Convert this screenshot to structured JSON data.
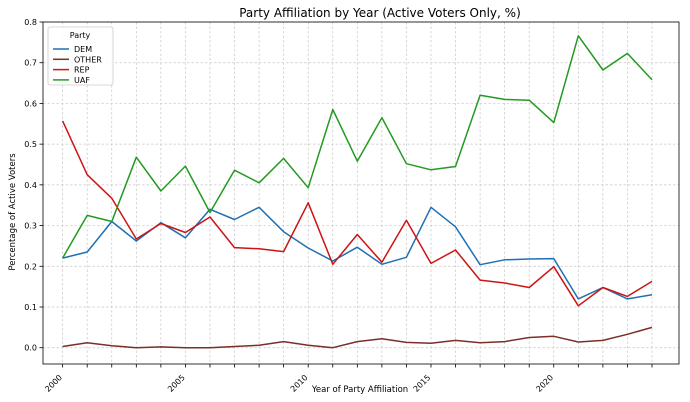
{
  "chart_data": {
    "type": "line",
    "title": "Party Affiliation by Year (Active Voters Only, %)",
    "xlabel": "Year of Party Affiliation",
    "ylabel": "Percentage of Active Voters",
    "xlim": [
      1999.2,
      2025.1
    ],
    "ylim": [
      -0.04,
      0.8
    ],
    "x_ticks": [
      2000,
      2005,
      2010,
      2015,
      2020
    ],
    "y_ticks": [
      0.0,
      0.1,
      0.2,
      0.3,
      0.4,
      0.5,
      0.6,
      0.7,
      0.8
    ],
    "grid": true,
    "legend": {
      "title": "Party",
      "placement": "top-left"
    },
    "x": [
      2000,
      2001,
      2002,
      2003,
      2004,
      2005,
      2006,
      2007,
      2008,
      2009,
      2010,
      2011,
      2012,
      2013,
      2014,
      2015,
      2016,
      2017,
      2018,
      2019,
      2020,
      2021,
      2022,
      2023,
      2024
    ],
    "series": [
      {
        "name": "DEM",
        "color": "#1f6fb4",
        "values": [
          0.22,
          0.235,
          0.31,
          0.262,
          0.307,
          0.27,
          0.34,
          0.315,
          0.345,
          0.285,
          0.245,
          0.213,
          0.247,
          0.205,
          0.222,
          0.345,
          0.297,
          0.204,
          0.216,
          0.218,
          0.219,
          0.12,
          0.148,
          0.12,
          0.13
        ]
      },
      {
        "name": "OTHER",
        "color": "#7b2f28",
        "values": [
          0.003,
          0.012,
          0.005,
          0.0,
          0.002,
          0.0,
          0.0,
          0.003,
          0.006,
          0.015,
          0.006,
          0.0,
          0.015,
          0.022,
          0.013,
          0.011,
          0.018,
          0.012,
          0.015,
          0.025,
          0.028,
          0.014,
          0.018,
          0.033,
          0.05
        ]
      },
      {
        "name": "REP",
        "color": "#cc1414",
        "values": [
          0.557,
          0.425,
          0.367,
          0.267,
          0.305,
          0.283,
          0.321,
          0.246,
          0.243,
          0.236,
          0.356,
          0.205,
          0.278,
          0.21,
          0.313,
          0.207,
          0.24,
          0.166,
          0.159,
          0.148,
          0.199,
          0.103,
          0.148,
          0.126,
          0.163
        ]
      },
      {
        "name": "UAF",
        "color": "#229a22",
        "values": [
          0.22,
          0.325,
          0.31,
          0.468,
          0.385,
          0.446,
          0.332,
          0.436,
          0.405,
          0.465,
          0.393,
          0.585,
          0.458,
          0.565,
          0.452,
          0.437,
          0.445,
          0.62,
          0.61,
          0.608,
          0.553,
          0.766,
          0.682,
          0.723,
          0.658
        ]
      }
    ]
  }
}
